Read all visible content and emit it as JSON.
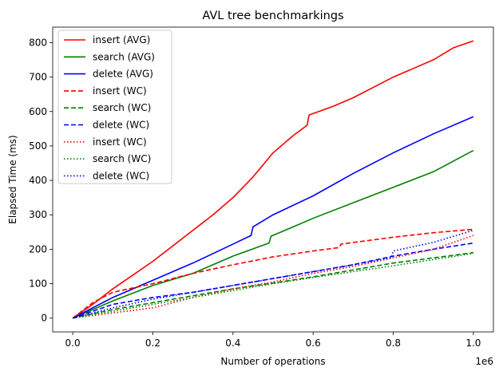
{
  "chart_data": {
    "type": "line",
    "title": "AVL tree benchmarkings",
    "xlabel": "Number of operations",
    "ylabel": "Elapsed Time (ms)",
    "x_offset_text": "1e6",
    "xlim": [
      -0.05,
      1.05
    ],
    "ylim": [
      -40,
      845
    ],
    "xticks": [
      0.0,
      0.2,
      0.4,
      0.6,
      0.8,
      1.0
    ],
    "xtick_labels": [
      "0.0",
      "0.2",
      "0.4",
      "0.6",
      "0.8",
      "1.0"
    ],
    "yticks": [
      0,
      100,
      200,
      300,
      400,
      500,
      600,
      700,
      800
    ],
    "ytick_labels": [
      "0",
      "100",
      "200",
      "300",
      "400",
      "500",
      "600",
      "700",
      "800"
    ],
    "grid": false,
    "legend_position": "top-left",
    "series": [
      {
        "name": "insert (AVG)",
        "color": "#ff0000",
        "style": "solid",
        "x": [
          0,
          0.05,
          0.1,
          0.15,
          0.2,
          0.25,
          0.3,
          0.35,
          0.4,
          0.45,
          0.5,
          0.55,
          0.585,
          0.59,
          0.65,
          0.7,
          0.75,
          0.8,
          0.85,
          0.9,
          0.95,
          1.0
        ],
        "y": [
          0,
          40,
          85,
          125,
          165,
          210,
          255,
          300,
          350,
          410,
          480,
          530,
          560,
          590,
          615,
          640,
          670,
          700,
          725,
          750,
          785,
          805
        ]
      },
      {
        "name": "search (AVG)",
        "color": "#008000",
        "style": "solid",
        "x": [
          0,
          0.1,
          0.2,
          0.3,
          0.4,
          0.49,
          0.495,
          0.55,
          0.6,
          0.7,
          0.8,
          0.9,
          1.0
        ],
        "y": [
          0,
          50,
          95,
          130,
          180,
          218,
          238,
          265,
          290,
          335,
          380,
          425,
          487
        ]
      },
      {
        "name": "delete (AVG)",
        "color": "#0000ff",
        "style": "solid",
        "x": [
          0,
          0.1,
          0.2,
          0.3,
          0.4,
          0.445,
          0.45,
          0.5,
          0.6,
          0.7,
          0.8,
          0.9,
          1.0
        ],
        "y": [
          0,
          60,
          110,
          160,
          215,
          240,
          265,
          300,
          355,
          420,
          480,
          535,
          585
        ]
      },
      {
        "name": "insert (WC)",
        "color": "#ff0000",
        "style": "dashed",
        "x": [
          0,
          0.05,
          0.1,
          0.2,
          0.3,
          0.4,
          0.5,
          0.6,
          0.665,
          0.67,
          0.8,
          0.9,
          1.0
        ],
        "y": [
          0,
          45,
          75,
          100,
          130,
          155,
          178,
          195,
          205,
          215,
          235,
          248,
          258
        ]
      },
      {
        "name": "search (WC)",
        "color": "#008000",
        "style": "dashed",
        "x": [
          0,
          0.1,
          0.2,
          0.3,
          0.4,
          0.5,
          0.6,
          0.7,
          0.8,
          0.9,
          1.0
        ],
        "y": [
          0,
          25,
          45,
          65,
          85,
          102,
          120,
          140,
          160,
          175,
          190
        ]
      },
      {
        "name": "delete (WC)",
        "color": "#0000ff",
        "style": "dashed",
        "x": [
          0,
          0.1,
          0.2,
          0.3,
          0.4,
          0.5,
          0.6,
          0.7,
          0.8,
          0.9,
          1.0
        ],
        "y": [
          0,
          40,
          60,
          75,
          95,
          115,
          135,
          155,
          180,
          200,
          218
        ]
      },
      {
        "name": "insert (WC)",
        "color": "#ff0000",
        "style": "dotted",
        "x": [
          0,
          0.1,
          0.2,
          0.25,
          0.3,
          0.4,
          0.5,
          0.6,
          0.7,
          0.8,
          0.9,
          1.0
        ],
        "y": [
          0,
          15,
          30,
          45,
          60,
          85,
          105,
          130,
          150,
          175,
          200,
          240
        ]
      },
      {
        "name": "search (WC)",
        "color": "#008000",
        "style": "dotted",
        "x": [
          0,
          0.1,
          0.2,
          0.3,
          0.4,
          0.5,
          0.6,
          0.7,
          0.8,
          0.9,
          1.0
        ],
        "y": [
          0,
          20,
          40,
          60,
          80,
          100,
          118,
          135,
          152,
          170,
          188
        ]
      },
      {
        "name": "delete (WC)",
        "color": "#0000ff",
        "style": "dotted",
        "x": [
          0,
          0.1,
          0.2,
          0.3,
          0.4,
          0.5,
          0.6,
          0.7,
          0.795,
          0.8,
          0.9,
          1.0
        ],
        "y": [
          0,
          30,
          55,
          75,
          95,
          115,
          135,
          155,
          175,
          195,
          220,
          255
        ]
      }
    ]
  }
}
